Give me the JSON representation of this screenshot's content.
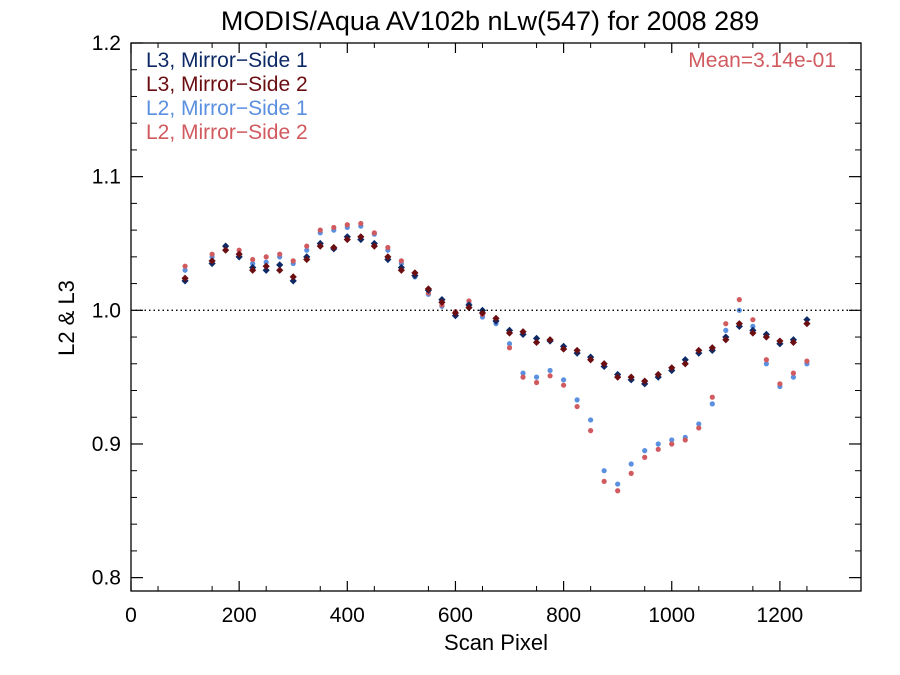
{
  "chart_data": {
    "type": "scatter",
    "title": "MODIS/Aqua AV102b nLw(547) for 2008 289",
    "xlabel": "Scan Pixel",
    "ylabel": "L2 & L3",
    "xlim": [
      0,
      1350
    ],
    "ylim": [
      0.79,
      1.2
    ],
    "xticks": [
      0,
      200,
      400,
      600,
      800,
      1000,
      1200
    ],
    "xtick_labels": [
      "0",
      "200",
      "400",
      "600",
      "800",
      "1000",
      "1200"
    ],
    "yticks": [
      0.8,
      0.9,
      1.0,
      1.1,
      1.2
    ],
    "ytick_labels": [
      "0.8",
      "0.9",
      "1.0",
      "1.1",
      "1.2"
    ],
    "reference_line": 1.0,
    "annotation": "Mean=3.14e-01",
    "legend_position": "top-left",
    "grid": false,
    "series": [
      {
        "name": "L3, Mirror−Side 1",
        "color": "#0d2a66",
        "x": [
          100,
          150,
          175,
          200,
          225,
          250,
          275,
          300,
          325,
          350,
          375,
          400,
          425,
          450,
          475,
          500,
          525,
          550,
          575,
          600,
          625,
          650,
          675,
          700,
          725,
          750,
          775,
          800,
          825,
          850,
          875,
          900,
          925,
          950,
          975,
          1000,
          1025,
          1050,
          1075,
          1100,
          1125,
          1150,
          1175,
          1200,
          1225,
          1250
        ],
        "y": [
          1.022,
          1.035,
          1.048,
          1.04,
          1.032,
          1.03,
          1.034,
          1.022,
          1.04,
          1.05,
          1.046,
          1.055,
          1.053,
          1.05,
          1.038,
          1.032,
          1.026,
          1.015,
          1.008,
          0.996,
          1.004,
          1.0,
          0.992,
          0.985,
          0.982,
          0.979,
          0.977,
          0.973,
          0.968,
          0.965,
          0.958,
          0.952,
          0.948,
          0.945,
          0.95,
          0.955,
          0.963,
          0.968,
          0.97,
          0.98,
          0.988,
          0.985,
          0.982,
          0.975,
          0.978,
          0.993
        ]
      },
      {
        "name": "L3, Mirror−Side 2",
        "color": "#6b0e12",
        "x": [
          100,
          150,
          175,
          200,
          225,
          250,
          275,
          300,
          325,
          350,
          375,
          400,
          425,
          450,
          475,
          500,
          525,
          550,
          575,
          600,
          625,
          650,
          675,
          700,
          725,
          750,
          775,
          800,
          825,
          850,
          875,
          900,
          925,
          950,
          975,
          1000,
          1025,
          1050,
          1075,
          1100,
          1125,
          1150,
          1175,
          1200,
          1225,
          1250
        ],
        "y": [
          1.024,
          1.037,
          1.045,
          1.042,
          1.03,
          1.033,
          1.03,
          1.025,
          1.038,
          1.048,
          1.047,
          1.053,
          1.055,
          1.048,
          1.04,
          1.03,
          1.028,
          1.016,
          1.006,
          0.998,
          1.002,
          0.998,
          0.994,
          0.983,
          0.984,
          0.976,
          0.978,
          0.971,
          0.97,
          0.963,
          0.96,
          0.95,
          0.95,
          0.947,
          0.952,
          0.957,
          0.96,
          0.97,
          0.972,
          0.978,
          0.99,
          0.983,
          0.98,
          0.977,
          0.976,
          0.99
        ]
      },
      {
        "name": "L2, Mirror−Side 1",
        "color": "#5b8fe0",
        "x": [
          100,
          150,
          175,
          200,
          225,
          250,
          275,
          300,
          325,
          350,
          375,
          400,
          425,
          450,
          475,
          500,
          525,
          550,
          575,
          600,
          625,
          650,
          675,
          700,
          725,
          750,
          775,
          800,
          825,
          850,
          875,
          900,
          925,
          950,
          975,
          1000,
          1025,
          1050,
          1075,
          1100,
          1125,
          1150,
          1175,
          1200,
          1225,
          1250
        ],
        "y": [
          1.03,
          1.04,
          1.045,
          1.042,
          1.035,
          1.036,
          1.04,
          1.035,
          1.045,
          1.058,
          1.06,
          1.062,
          1.063,
          1.057,
          1.045,
          1.035,
          1.025,
          1.012,
          1.003,
          0.998,
          1.005,
          0.995,
          0.99,
          0.975,
          0.953,
          0.95,
          0.955,
          0.948,
          0.933,
          0.918,
          0.88,
          0.87,
          0.885,
          0.895,
          0.9,
          0.903,
          0.905,
          0.915,
          0.93,
          0.985,
          1.0,
          0.988,
          0.96,
          0.943,
          0.95,
          0.96
        ]
      },
      {
        "name": "L2, Mirror−Side 2",
        "color": "#d15a5f",
        "x": [
          100,
          150,
          175,
          200,
          225,
          250,
          275,
          300,
          325,
          350,
          375,
          400,
          425,
          450,
          475,
          500,
          525,
          550,
          575,
          600,
          625,
          650,
          675,
          700,
          725,
          750,
          775,
          800,
          825,
          850,
          875,
          900,
          925,
          950,
          975,
          1000,
          1025,
          1050,
          1075,
          1100,
          1125,
          1150,
          1175,
          1200,
          1225,
          1250
        ],
        "y": [
          1.033,
          1.042,
          1.048,
          1.045,
          1.038,
          1.04,
          1.042,
          1.037,
          1.048,
          1.06,
          1.062,
          1.064,
          1.065,
          1.058,
          1.047,
          1.037,
          1.026,
          1.013,
          1.004,
          0.999,
          1.007,
          0.997,
          0.992,
          0.972,
          0.95,
          0.946,
          0.951,
          0.944,
          0.928,
          0.91,
          0.872,
          0.865,
          0.878,
          0.89,
          0.896,
          0.9,
          0.903,
          0.912,
          0.935,
          0.99,
          1.008,
          0.993,
          0.963,
          0.945,
          0.953,
          0.962
        ]
      }
    ]
  }
}
